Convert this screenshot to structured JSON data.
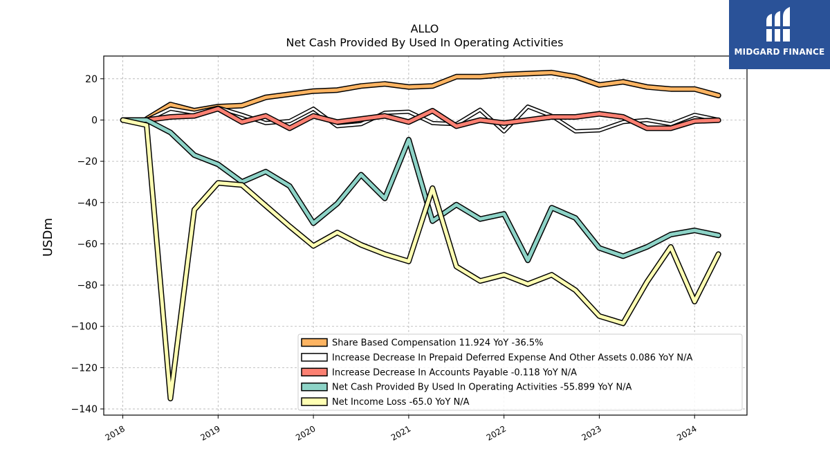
{
  "chart_data": {
    "type": "line",
    "title": "ALLO",
    "subtitle": "Net Cash Provided By Used In Operating Activities",
    "ylabel": "USDm",
    "xlabel": "",
    "ylim": [
      -143,
      31
    ],
    "xlim": [
      2017.8,
      2024.55
    ],
    "yticks": [
      20,
      0,
      -20,
      -40,
      -60,
      -80,
      -100,
      -120,
      -140
    ],
    "xticks": [
      "2018",
      "2019",
      "2020",
      "2021",
      "2022",
      "2023",
      "2024"
    ],
    "grid": true,
    "legend_position": "lower-right",
    "x": [
      2018.0,
      2018.25,
      2018.5,
      2018.75,
      2019.0,
      2019.25,
      2019.5,
      2019.75,
      2020.0,
      2020.25,
      2020.5,
      2020.75,
      2021.0,
      2021.25,
      2021.5,
      2021.75,
      2022.0,
      2022.25,
      2022.5,
      2022.75,
      2023.0,
      2023.25,
      2023.5,
      2023.75,
      2024.0,
      2024.25
    ],
    "series": [
      {
        "name": "Share Based Compensation  11.924 YoY -36.5%",
        "color": "#fdb462",
        "width": 5,
        "values": [
          null,
          0.5,
          7.5,
          4.5,
          6.5,
          7,
          11,
          12.5,
          14,
          14.5,
          16.5,
          17.5,
          16,
          16.5,
          21,
          21,
          22,
          22.5,
          23,
          21,
          17,
          18.5,
          16,
          15,
          15,
          11.9
        ]
      },
      {
        "name": "Increase Decrease In Prepaid Deferred Expense And Other Assets  0.086 YoY N/A",
        "color": "#ffffff",
        "width": 3,
        "values": [
          0,
          0,
          5.5,
          3.5,
          6,
          2.5,
          -1.5,
          -0.5,
          5.5,
          -3,
          -2,
          3.5,
          4,
          -1.5,
          -2,
          5,
          -5.5,
          6.5,
          2,
          -5.5,
          -5,
          -1,
          0,
          -2,
          2.5,
          0.086
        ]
      },
      {
        "name": "Increase Decrease In Accounts Payable  -0.118 YoY N/A",
        "color": "#fb8072",
        "width": 5,
        "values": [
          null,
          0,
          1.5,
          2,
          5.5,
          -1,
          2,
          -4,
          2,
          -1,
          0.5,
          2,
          -1,
          4.5,
          -3,
          0,
          -1.5,
          0,
          1.5,
          1.5,
          3,
          1.5,
          -4,
          -4,
          -0.5,
          -0.118
        ]
      },
      {
        "name": "Net Cash Provided By Used In Operating Activities  -55.899 YoY N/A",
        "color": "#8dd3c7",
        "width": 5,
        "values": [
          0,
          0,
          -6,
          -17,
          -21.5,
          -30,
          -25,
          -32,
          -50,
          -40.5,
          -26.5,
          -38,
          -9.5,
          -49,
          -41,
          -48,
          -45.5,
          -68,
          -42.5,
          -47.5,
          -62,
          -66,
          -61.5,
          -55.5,
          -53.5,
          -55.899
        ]
      },
      {
        "name": "Net Income Loss  -65.0 YoY N/A",
        "color": "#ffffb3",
        "width": 5,
        "values": [
          0,
          -2.5,
          -135,
          -43.5,
          -30.5,
          -31.5,
          -41.5,
          -51.5,
          -61,
          -54.5,
          -60.5,
          -65,
          -68.5,
          -33,
          -71,
          -78,
          -75,
          -79.5,
          -75,
          -82.5,
          -95,
          -98.5,
          -78.5,
          -61.5,
          -88,
          -65
        ]
      }
    ]
  },
  "brand": {
    "name": "MIDGARD FINANCE",
    "color": "#2a5298"
  }
}
